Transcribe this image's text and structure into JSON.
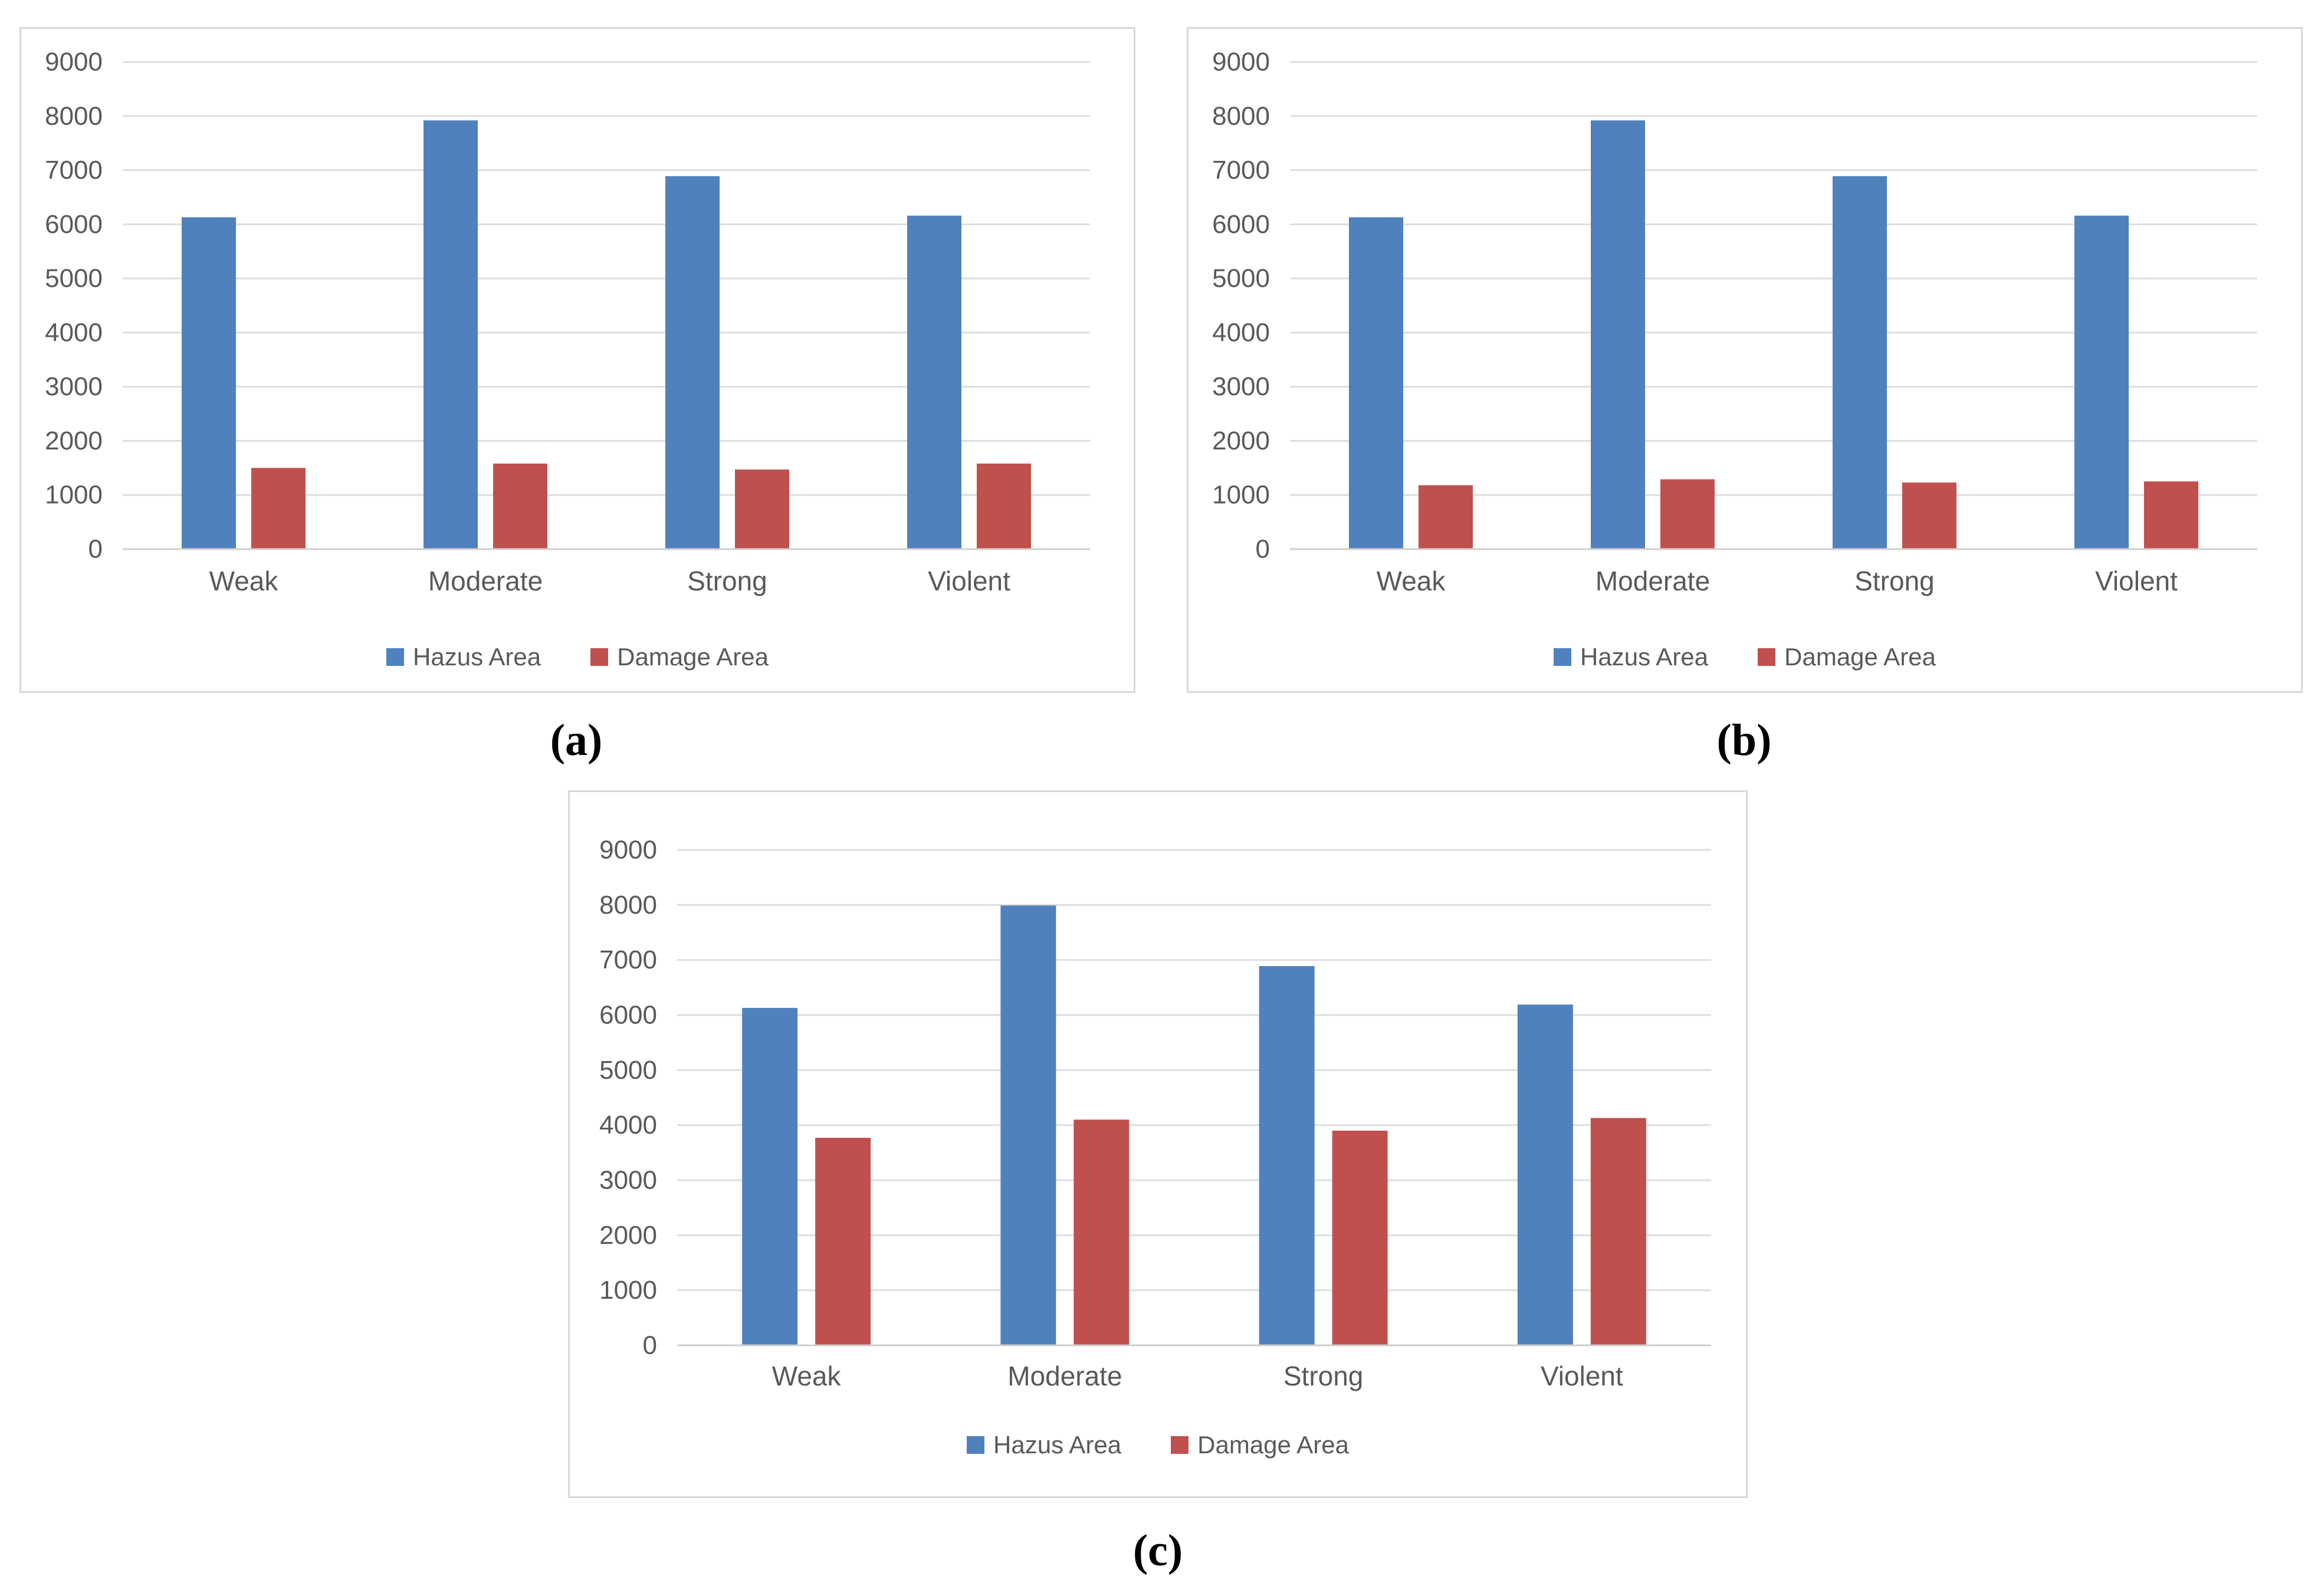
{
  "figure": {
    "captions": [
      "(a)",
      "(b)",
      "(c)"
    ]
  },
  "colors": {
    "hazus_blue": "#4F81BD",
    "damage_red": "#C0504D",
    "gridline": "#DEDEDE",
    "zero_axis_line": "#CFCFCF",
    "axis_text": "#595959",
    "panel_border": "#D9D9D9"
  },
  "chart_data": [
    {
      "id": "a",
      "type": "bar",
      "title": "",
      "xlabel": "",
      "ylabel": "",
      "categories": [
        "Weak",
        "Moderate",
        "Strong",
        "Violent"
      ],
      "series": [
        {
          "name": "Hazus Area",
          "color": "#4F81BD",
          "values": [
            6130,
            7920,
            6890,
            6160
          ]
        },
        {
          "name": "Damage Area",
          "color": "#C0504D",
          "values": [
            1500,
            1580,
            1470,
            1580
          ]
        }
      ],
      "ylim": [
        0,
        9000
      ],
      "ytick_step": 1000,
      "grid": true,
      "legend_position": "bottom"
    },
    {
      "id": "b",
      "type": "bar",
      "title": "",
      "xlabel": "",
      "ylabel": "",
      "categories": [
        "Weak",
        "Moderate",
        "Strong",
        "Violent"
      ],
      "series": [
        {
          "name": "Hazus Area",
          "color": "#4F81BD",
          "values": [
            6130,
            7920,
            6890,
            6160
          ]
        },
        {
          "name": "Damage Area",
          "color": "#C0504D",
          "values": [
            1180,
            1290,
            1230,
            1250
          ]
        }
      ],
      "ylim": [
        0,
        9000
      ],
      "ytick_step": 1000,
      "grid": true,
      "legend_position": "bottom"
    },
    {
      "id": "c",
      "type": "bar",
      "title": "",
      "xlabel": "",
      "ylabel": "",
      "categories": [
        "Weak",
        "Moderate",
        "Strong",
        "Violent"
      ],
      "series": [
        {
          "name": "Hazus Area",
          "color": "#4F81BD",
          "values": [
            6130,
            7990,
            6890,
            6190
          ]
        },
        {
          "name": "Damage Area",
          "color": "#C0504D",
          "values": [
            3770,
            4100,
            3900,
            4130
          ]
        }
      ],
      "ylim": [
        0,
        9000
      ],
      "ytick_step": 1000,
      "grid": true,
      "legend_position": "bottom"
    }
  ]
}
